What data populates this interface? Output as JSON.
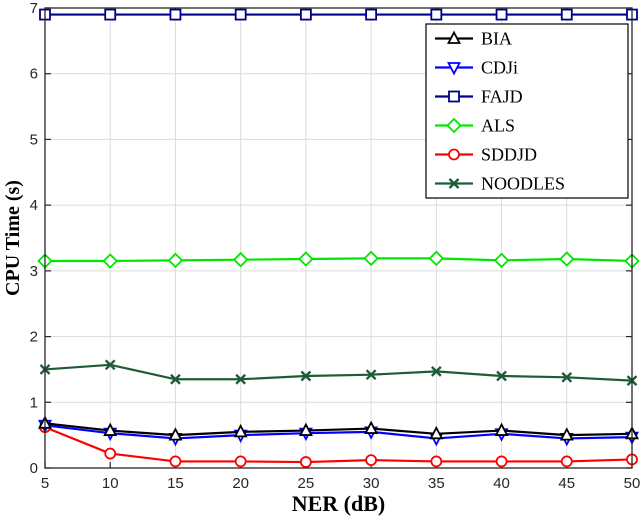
{
  "figure": {
    "background": "#ffffff",
    "axes_box_color": "#262626",
    "grid_color": "#dcdcdc",
    "tick_label_color": "#262626",
    "label_color": "#000000",
    "legend_border_color": "#000000",
    "legend_background": "#ffffff"
  },
  "chart_data": {
    "type": "line",
    "title": "",
    "xlabel": "NER (dB)",
    "ylabel": "CPU Time (s)",
    "xlim": [
      5,
      50
    ],
    "ylim": [
      0,
      7
    ],
    "xticks": [
      5,
      10,
      15,
      20,
      25,
      30,
      35,
      40,
      45,
      50
    ],
    "yticks": [
      0,
      1,
      2,
      3,
      4,
      5,
      6,
      7
    ],
    "grid": true,
    "legend_position": "top-right",
    "x": [
      5,
      10,
      15,
      20,
      25,
      30,
      35,
      40,
      45,
      50
    ],
    "series": [
      {
        "name": "BIA",
        "color": "#000000",
        "marker": "triangle-up",
        "values": [
          0.68,
          0.57,
          0.5,
          0.55,
          0.57,
          0.6,
          0.52,
          0.57,
          0.5,
          0.52
        ]
      },
      {
        "name": "CDJi",
        "color": "#0000ff",
        "marker": "triangle-down",
        "values": [
          0.65,
          0.53,
          0.45,
          0.5,
          0.53,
          0.55,
          0.45,
          0.52,
          0.45,
          0.47
        ]
      },
      {
        "name": "FAJD",
        "color": "#00008b",
        "marker": "square",
        "values": [
          6.9,
          6.9,
          6.9,
          6.9,
          6.9,
          6.9,
          6.9,
          6.9,
          6.9,
          6.9
        ]
      },
      {
        "name": "ALS",
        "color": "#00e600",
        "marker": "diamond",
        "values": [
          3.15,
          3.15,
          3.16,
          3.17,
          3.18,
          3.19,
          3.19,
          3.16,
          3.18,
          3.15
        ]
      },
      {
        "name": "SDDJD",
        "color": "#ff0000",
        "marker": "circle",
        "values": [
          0.62,
          0.22,
          0.1,
          0.1,
          0.09,
          0.12,
          0.1,
          0.1,
          0.1,
          0.13
        ]
      },
      {
        "name": "NOODLES",
        "color": "#1e5c38",
        "marker": "x",
        "values": [
          1.5,
          1.57,
          1.35,
          1.35,
          1.4,
          1.42,
          1.47,
          1.4,
          1.38,
          1.33
        ]
      }
    ]
  }
}
